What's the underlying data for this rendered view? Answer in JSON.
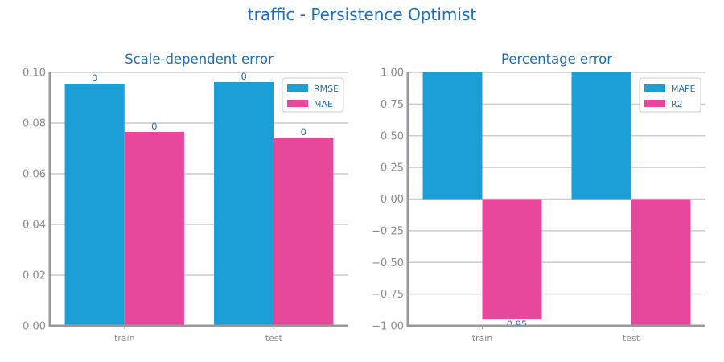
{
  "figure_title": "traffic - Persistence Optimist",
  "colors": {
    "series1": "#1b9fd6",
    "series2": "#e8489c",
    "title": "#1f6fb4",
    "grid": "#cccccc",
    "axis": "#999999"
  },
  "chart_data": [
    {
      "type": "bar",
      "title": "Scale-dependent error",
      "categories": [
        "train",
        "test"
      ],
      "series": [
        {
          "name": "RMSE",
          "values": [
            0.0955,
            0.0962
          ],
          "labels": [
            "0",
            "0"
          ]
        },
        {
          "name": "MAE",
          "values": [
            0.0765,
            0.0743
          ],
          "labels": [
            "0",
            "0"
          ]
        }
      ],
      "ylim": [
        0,
        0.1
      ],
      "yticks": [
        0,
        0.02,
        0.04,
        0.06,
        0.08,
        0.1
      ],
      "ytick_labels": [
        "0.00",
        "0.02",
        "0.04",
        "0.06",
        "0.08",
        "0.10"
      ],
      "legend": "top-right",
      "grid": true
    },
    {
      "type": "bar",
      "title": "Percentage error",
      "categories": [
        "train",
        "test"
      ],
      "series": [
        {
          "name": "MAPE",
          "values": [
            1.0,
            1.0
          ],
          "labels": [
            "",
            ""
          ]
        },
        {
          "name": "R2",
          "values": [
            -0.95,
            -1.0
          ],
          "labels": [
            "-0.95",
            ""
          ]
        }
      ],
      "ylim": [
        -1.0,
        1.0
      ],
      "yticks": [
        -1.0,
        -0.75,
        -0.5,
        -0.25,
        0,
        0.25,
        0.5,
        0.75,
        1.0
      ],
      "ytick_labels": [
        "−1.00",
        "−0.75",
        "−0.50",
        "−0.25",
        "0.00",
        "0.25",
        "0.50",
        "0.75",
        "1.00"
      ],
      "legend": "top-right",
      "grid": true
    }
  ]
}
